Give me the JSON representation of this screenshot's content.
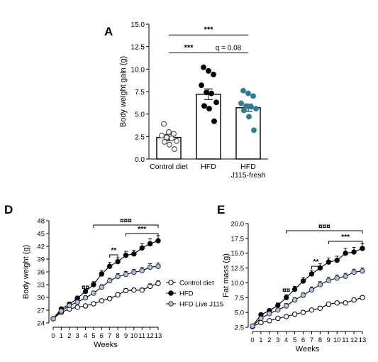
{
  "colors": {
    "black": "#000000",
    "white": "#ffffff",
    "blue": "#a9c4e8",
    "teal": "#2f7e8f",
    "line": "#333333"
  },
  "panels": {
    "a": "A",
    "d": "D",
    "e": "E"
  },
  "chart_data": [
    {
      "panel": "A",
      "type": "bar",
      "ylabel": "Body weight gain (g)",
      "ylim": [
        0,
        15
      ],
      "yticks": [
        "0.0",
        "2.5",
        "5.0",
        "7.5",
        "10.0",
        "12.5",
        "15.0"
      ],
      "categories": [
        {
          "lines": [
            "Control diet"
          ]
        },
        {
          "lines": [
            "HFD"
          ]
        },
        {
          "lines": [
            "HFD",
            "J115-fresh"
          ]
        }
      ],
      "values": [
        2.4,
        7.2,
        5.7
      ],
      "errors": [
        0.35,
        0.6,
        0.4
      ],
      "points": [
        [
          3.9,
          3.0,
          2.8,
          2.6,
          2.4,
          2.3,
          2.0,
          1.9,
          1.6,
          1.1
        ],
        [
          10.2,
          9.8,
          9.4,
          8.2,
          7.4,
          7.3,
          6.3,
          5.9,
          5.6,
          4.2
        ],
        [
          7.6,
          7.3,
          7.0,
          6.2,
          5.9,
          5.8,
          5.6,
          5.4,
          4.7,
          3.2
        ]
      ],
      "point_styles": [
        "open",
        "black",
        "teal"
      ],
      "annotations": [
        {
          "text": "***",
          "from": 0,
          "to": 2,
          "y": 13.8
        },
        {
          "text": "***",
          "from": 0,
          "to": 1,
          "y": 11.8
        },
        {
          "text": "q = 0.08",
          "from": 1,
          "to": 2,
          "y": 11.8
        }
      ]
    },
    {
      "panel": "D",
      "type": "line",
      "xlabel": "Weeks",
      "ylabel": "Body weight (g)",
      "ylim": [
        24,
        48
      ],
      "yticks": [
        24,
        27,
        30,
        33,
        36,
        39,
        42,
        45,
        48
      ],
      "x": [
        0,
        1,
        2,
        3,
        4,
        5,
        6,
        7,
        8,
        9,
        10,
        11,
        12,
        13
      ],
      "series": [
        {
          "name": "Control diet",
          "style": "open",
          "values": [
            25.0,
            26.5,
            27.3,
            27.7,
            28.0,
            28.5,
            29.2,
            29.7,
            30.6,
            31.6,
            31.7,
            31.7,
            32.6,
            33.3
          ],
          "errors": [
            0.3,
            0.4,
            0.4,
            0.4,
            0.4,
            0.4,
            0.4,
            0.5,
            0.5,
            0.5,
            0.5,
            0.5,
            0.6,
            0.6
          ]
        },
        {
          "name": "HFD",
          "style": "black",
          "values": [
            25.0,
            27.3,
            28.4,
            29.8,
            31.4,
            33.0,
            35.5,
            37.3,
            38.4,
            39.9,
            40.2,
            41.6,
            42.6,
            43.3
          ],
          "errors": [
            0.3,
            0.4,
            0.5,
            0.5,
            0.6,
            0.7,
            0.8,
            0.9,
            0.9,
            0.9,
            0.9,
            1.0,
            1.2,
            1.2
          ]
        },
        {
          "name": "HFD Live J115",
          "style": "blue",
          "values": [
            25.0,
            26.8,
            28.1,
            28.9,
            29.9,
            31.0,
            32.4,
            33.9,
            34.9,
            35.4,
            35.9,
            36.3,
            37.1,
            37.3
          ],
          "errors": [
            0.3,
            0.4,
            0.4,
            0.5,
            0.5,
            0.5,
            0.6,
            0.6,
            0.7,
            0.7,
            0.7,
            0.7,
            0.8,
            0.8
          ]
        }
      ],
      "annotations": [
        {
          "text": "¤¤",
          "x": 4,
          "y": 31.8
        },
        {
          "text": "**",
          "x1": 7,
          "x2": 8,
          "y": 40.0
        },
        {
          "text": "***",
          "x1": 9,
          "x2": 13,
          "y": 45.0
        },
        {
          "text": "¤¤¤",
          "x1": 5,
          "x2": 13,
          "y": 47.0
        }
      ],
      "legend": "right"
    },
    {
      "panel": "E",
      "type": "line",
      "xlabel": "Weeks",
      "ylabel": "Fat mass (g)",
      "ylim": [
        2.5,
        20
      ],
      "yticks": [
        "2.5",
        "5.0",
        "7.5",
        "10.0",
        "12.5",
        "15.0",
        "17.5",
        "20.0"
      ],
      "x": [
        0,
        1,
        2,
        3,
        4,
        5,
        6,
        7,
        8,
        9,
        10,
        11,
        12,
        13
      ],
      "series": [
        {
          "name": "Control diet",
          "style": "open",
          "values": [
            2.6,
            3.3,
            3.6,
            4.0,
            4.3,
            4.7,
            5.0,
            5.4,
            5.7,
            6.4,
            6.6,
            6.6,
            7.1,
            7.5
          ],
          "errors": [
            0.2,
            0.2,
            0.2,
            0.2,
            0.2,
            0.3,
            0.3,
            0.3,
            0.3,
            0.3,
            0.3,
            0.3,
            0.3,
            0.3
          ]
        },
        {
          "name": "HFD",
          "style": "black",
          "values": [
            2.7,
            4.6,
            5.3,
            6.2,
            7.5,
            8.9,
            10.3,
            11.5,
            12.5,
            13.5,
            13.8,
            15.0,
            15.2,
            15.8
          ],
          "errors": [
            0.2,
            0.3,
            0.3,
            0.4,
            0.5,
            0.5,
            0.6,
            0.6,
            0.7,
            0.7,
            0.7,
            0.8,
            0.8,
            0.8
          ]
        },
        {
          "name": "HFD Live J115",
          "style": "blue",
          "values": [
            2.7,
            4.0,
            4.8,
            5.4,
            6.1,
            7.1,
            7.9,
            8.8,
            9.7,
            10.4,
            10.8,
            11.1,
            11.8,
            12.0
          ],
          "errors": [
            0.2,
            0.3,
            0.3,
            0.3,
            0.4,
            0.4,
            0.4,
            0.5,
            0.5,
            0.5,
            0.5,
            0.5,
            0.5,
            0.5
          ]
        }
      ],
      "annotations": [
        {
          "text": "¤¤",
          "x": 4,
          "y": 8.4
        },
        {
          "text": "**",
          "x1": 7,
          "x2": 8,
          "y": 12.8
        },
        {
          "text": "***",
          "x1": 9,
          "x2": 13,
          "y": 17.0
        },
        {
          "text": "¤¤¤",
          "x1": 4,
          "x2": 13,
          "y": 18.8
        }
      ]
    }
  ]
}
